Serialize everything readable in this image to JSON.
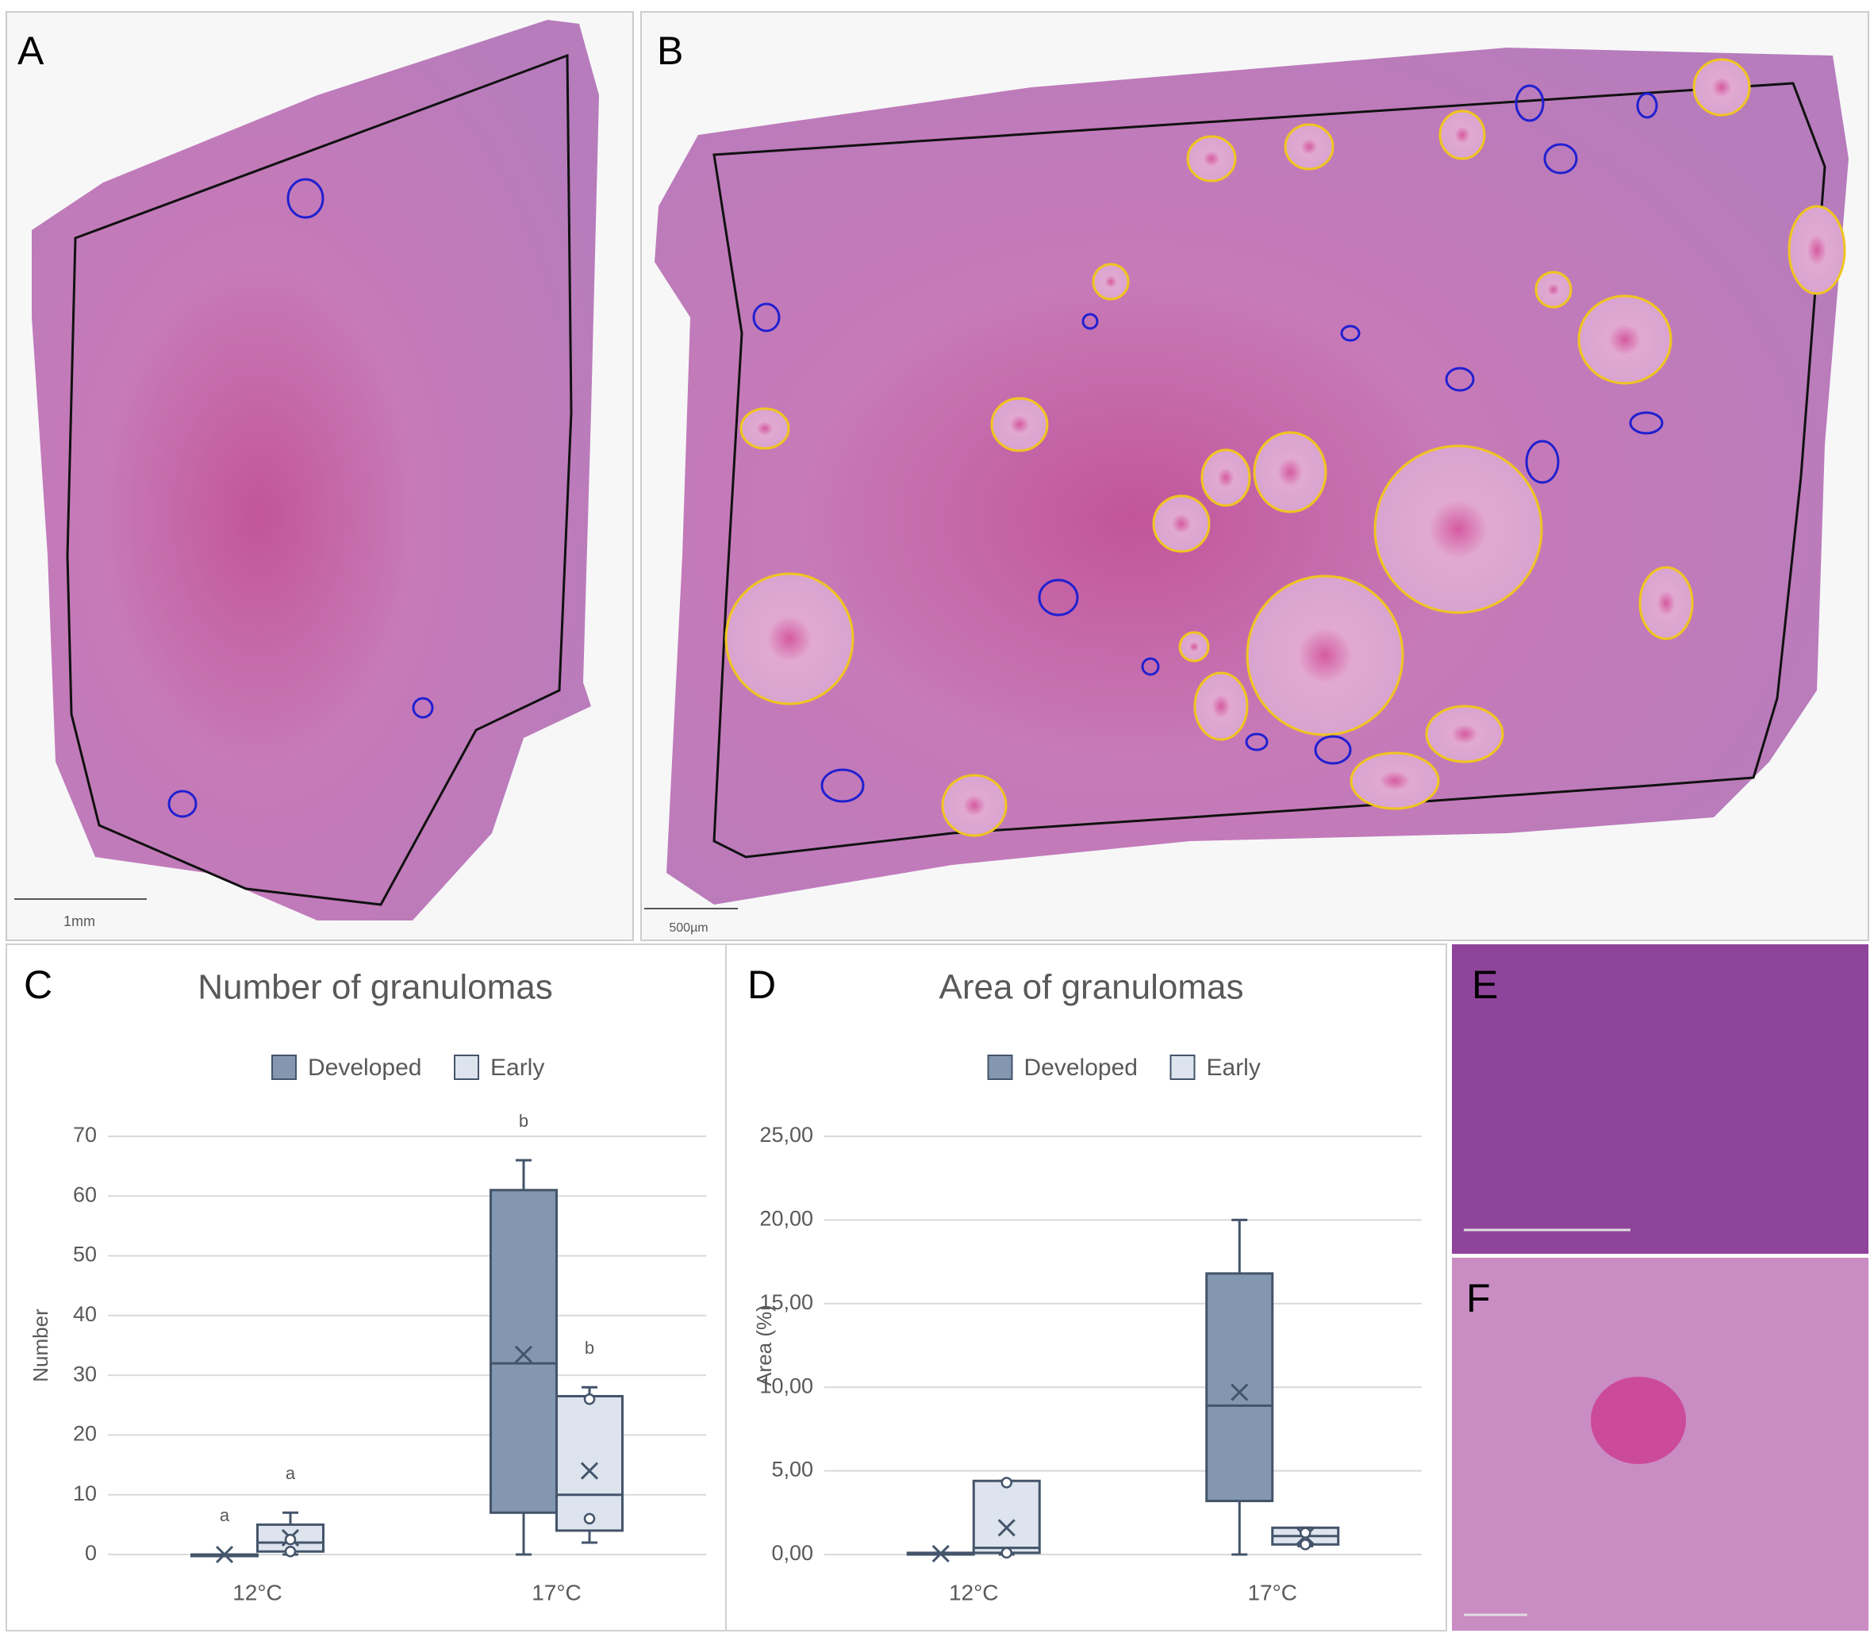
{
  "panels": [
    {
      "label": "A",
      "scale_bar": "1mm"
    },
    {
      "label": "B",
      "scale_bar": "500µm"
    },
    {
      "label": "E"
    },
    {
      "label": "F"
    }
  ],
  "chart_data": [
    {
      "type": "box",
      "panel_label": "C",
      "title": "Number of granulomas",
      "y_label": "Number",
      "categories": [
        "12°C",
        "17°C"
      ],
      "ylim": [
        0,
        70
      ],
      "yticks": [
        0,
        10,
        20,
        30,
        40,
        50,
        60,
        70
      ],
      "grid": true,
      "series": [
        {
          "name": "Developed",
          "color": "#8497b0",
          "letters": [
            "a",
            "b"
          ],
          "boxes": [
            {
              "min": 0,
              "q1": 0,
              "median": 0,
              "q3": 0,
              "max": 0,
              "mean": 0,
              "points": []
            },
            {
              "min": 0,
              "q1": 7,
              "median": 32,
              "q3": 61,
              "max": 66,
              "mean": 33.5,
              "points": []
            }
          ]
        },
        {
          "name": "Early",
          "color": "#dde4ee",
          "letters": [
            "a",
            "b"
          ],
          "boxes": [
            {
              "min": 0,
              "q1": 0.5,
              "median": 2,
              "q3": 5,
              "max": 7,
              "mean": 2.8,
              "points": [
                0.5,
                2.5
              ]
            },
            {
              "min": 2,
              "q1": 4,
              "median": 10,
              "q3": 26.5,
              "max": 28,
              "mean": 14,
              "points": [
                26,
                6
              ]
            }
          ]
        }
      ]
    },
    {
      "type": "box",
      "panel_label": "D",
      "title": "Area of granulomas",
      "y_label": "Area (%)",
      "categories": [
        "12°C",
        "17°C"
      ],
      "ylim": [
        0,
        25
      ],
      "yticks": [
        {
          "value": 0,
          "label": "0,00"
        },
        {
          "value": 5,
          "label": "5,00"
        },
        {
          "value": 10,
          "label": "10,00"
        },
        {
          "value": 15,
          "label": "15,00"
        },
        {
          "value": 20,
          "label": "20,00"
        },
        {
          "value": 25,
          "label": "25,00"
        }
      ],
      "grid": true,
      "series": [
        {
          "name": "Developed",
          "color": "#8497b0",
          "boxes": [
            {
              "min": 0,
              "q1": 0,
              "median": 0,
              "q3": 0.1,
              "max": 0.1,
              "mean": 0.05,
              "points": []
            },
            {
              "min": 0,
              "q1": 3.2,
              "median": 8.9,
              "q3": 16.8,
              "max": 20,
              "mean": 9.7,
              "points": []
            }
          ]
        },
        {
          "name": "Early",
          "color": "#dde4ee",
          "boxes": [
            {
              "min": 0,
              "q1": 0.1,
              "median": 0.4,
              "q3": 4.4,
              "max": 4.4,
              "mean": 1.6,
              "points": [
                4.3,
                0.1
              ]
            },
            {
              "min": 0.5,
              "q1": 0.6,
              "median": 1.1,
              "q3": 1.6,
              "max": 1.6,
              "mean": 1.1,
              "points": [
                1.3,
                0.6
              ]
            }
          ]
        }
      ]
    }
  ]
}
